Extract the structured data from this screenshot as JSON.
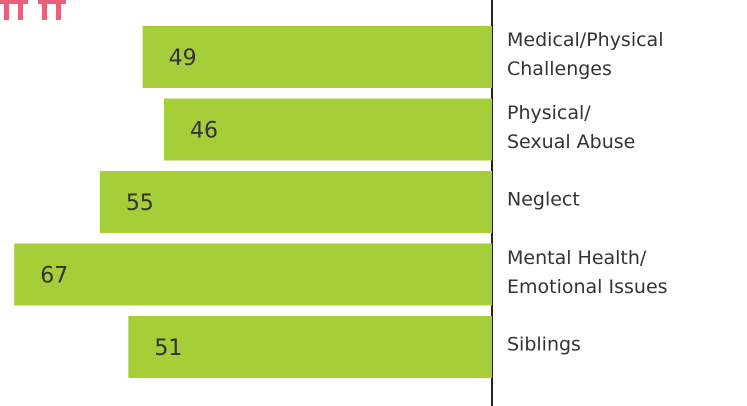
{
  "chart_data": {
    "type": "bar",
    "orientation": "horizontal",
    "direction": "leftward",
    "categories": [
      "Medical/Physical\nChallenges",
      "Physical/\nSexual Abuse",
      "Neglect",
      "Mental Health/\nEmotional Issues",
      "Siblings"
    ],
    "values": [
      49,
      46,
      55,
      67,
      51
    ],
    "color": "#a6ce39",
    "xlim": [
      0,
      69
    ]
  }
}
